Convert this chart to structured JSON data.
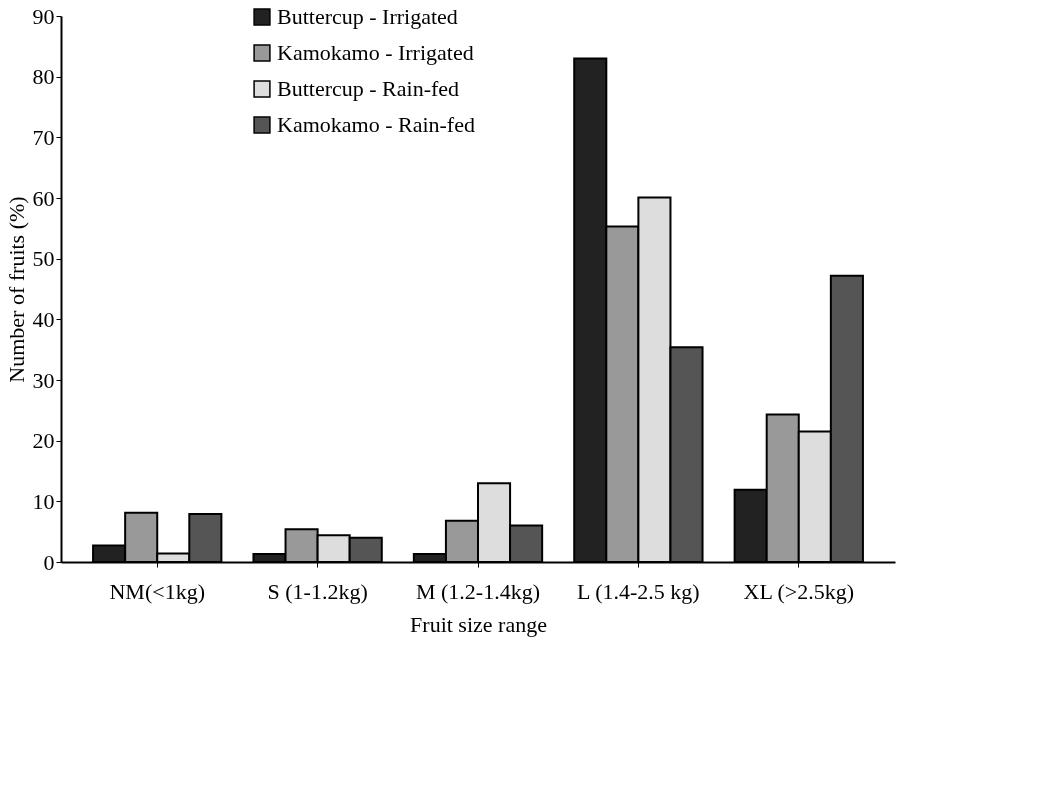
{
  "chart_data": {
    "type": "bar",
    "xlabel": "Fruit size range",
    "ylabel": "Number of fruits (%)",
    "categories": [
      "NM(<1kg)",
      "S (1-1.2kg)",
      "M (1.2-1.4kg)",
      "L (1.4-2.5 kg)",
      "XL (>2.5kg)"
    ],
    "series": [
      {
        "name": "Buttercup - Irrigated",
        "color": "#222222",
        "values": [
          2.7,
          1.3,
          1.3,
          83,
          11.9
        ]
      },
      {
        "name": "Kamokamo - Irrigated",
        "color": "#999999",
        "values": [
          8.1,
          5.4,
          6.8,
          55.3,
          24.3
        ]
      },
      {
        "name": "Buttercup - Rain-fed",
        "color": "#dddddd",
        "values": [
          1.4,
          4.4,
          13,
          60.1,
          21.5
        ]
      },
      {
        "name": "Kamokamo - Rain-fed",
        "color": "#555555",
        "values": [
          7.9,
          4.0,
          6.0,
          35.4,
          47.2
        ]
      }
    ],
    "ylim": [
      0,
      90
    ],
    "yticks": [
      0,
      10,
      20,
      30,
      40,
      50,
      60,
      70,
      80,
      90
    ],
    "grid": false,
    "legend": "top left"
  }
}
